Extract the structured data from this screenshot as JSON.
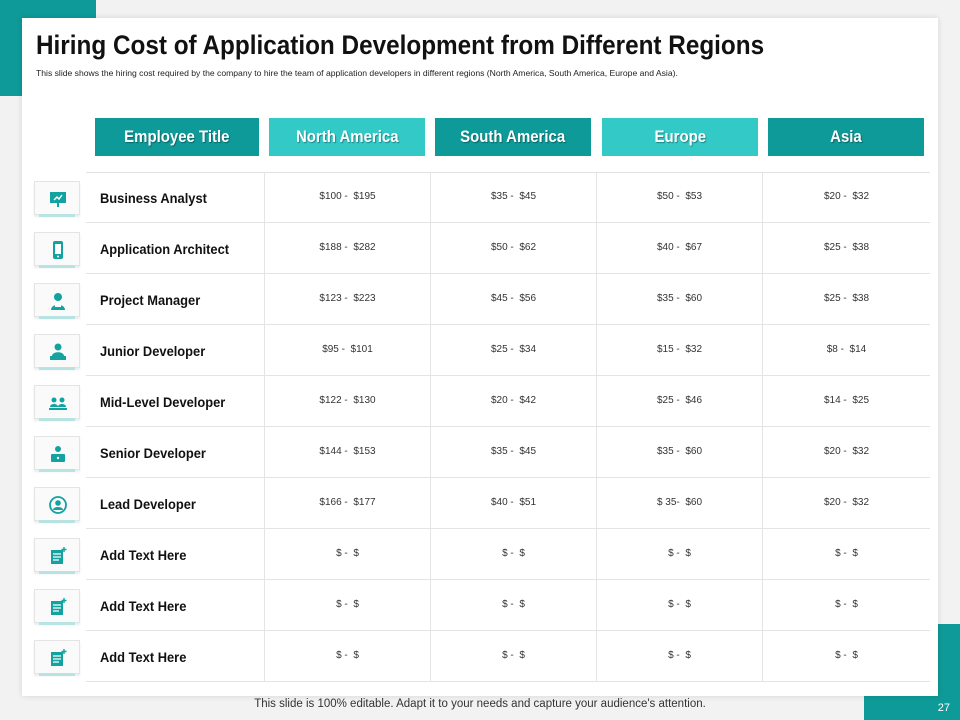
{
  "slide": {
    "title": "Hiring Cost of Application Development from Different Regions",
    "subtitle": "This slide shows the hiring cost required by the company to hire the team of application developers in different regions (North America, South America, Europe and Asia).",
    "footer": "This slide is 100% editable. Adapt it to your needs and capture your audience's attention.",
    "page_number": "27"
  },
  "colors": {
    "teal_dark": "#0e9a98",
    "teal_light": "#33c9c7",
    "icon_teal": "#12a3a1"
  },
  "table": {
    "headers": [
      {
        "label": "Employee Title",
        "color": "#0e9a98"
      },
      {
        "label": "North America",
        "color": "#33c9c7"
      },
      {
        "label": "South America",
        "color": "#0e9a98"
      },
      {
        "label": "Europe",
        "color": "#33c9c7"
      },
      {
        "label": "Asia",
        "color": "#0e9a98"
      }
    ],
    "rows": [
      {
        "title": "Business Analyst",
        "icon": "analyst-presentation-icon",
        "values": [
          "$100 -  $195",
          "$35 -  $45",
          "$50 -  $53",
          "$20 -  $32"
        ]
      },
      {
        "title": "Application Architect",
        "icon": "mobile-app-icon",
        "values": [
          "$188 -  $282",
          "$50 -  $62",
          "$40 -  $67",
          "$25 -  $38"
        ]
      },
      {
        "title": "Project Manager",
        "icon": "manager-icon",
        "values": [
          "$123 -  $223",
          "$45 -  $56",
          "$35 -  $60",
          "$25 -  $38"
        ]
      },
      {
        "title": "Junior Developer",
        "icon": "developer-desk-icon",
        "values": [
          "$95 -  $101",
          "$25 -  $34",
          "$15 -  $32",
          "$8 -  $14"
        ]
      },
      {
        "title": "Mid-Level Developer",
        "icon": "team-icon",
        "values": [
          "$122 -  $130",
          "$20 -  $42",
          "$25 -  $46",
          "$14 -  $25"
        ]
      },
      {
        "title": "Senior Developer",
        "icon": "senior-developer-icon",
        "values": [
          "$144 -  $153",
          "$35 -  $45",
          "$35 -  $60",
          "$20 -  $32"
        ]
      },
      {
        "title": "Lead Developer",
        "icon": "lead-user-icon",
        "values": [
          "$166 -  $177",
          "$40 -  $51",
          "$ 35-  $60",
          "$20 -  $32"
        ]
      },
      {
        "title": "Add Text Here",
        "icon": "document-plus-icon",
        "values": [
          "$ -  $",
          "$ -  $",
          "$ -  $",
          "$ -  $"
        ]
      },
      {
        "title": "Add Text Here",
        "icon": "document-plus-icon",
        "values": [
          "$ -  $",
          "$ -  $",
          "$ -  $",
          "$ -  $"
        ]
      },
      {
        "title": "Add Text Here",
        "icon": "document-plus-icon",
        "values": [
          "$ -  $",
          "$ -  $",
          "$ -  $",
          "$ -  $"
        ]
      }
    ]
  }
}
